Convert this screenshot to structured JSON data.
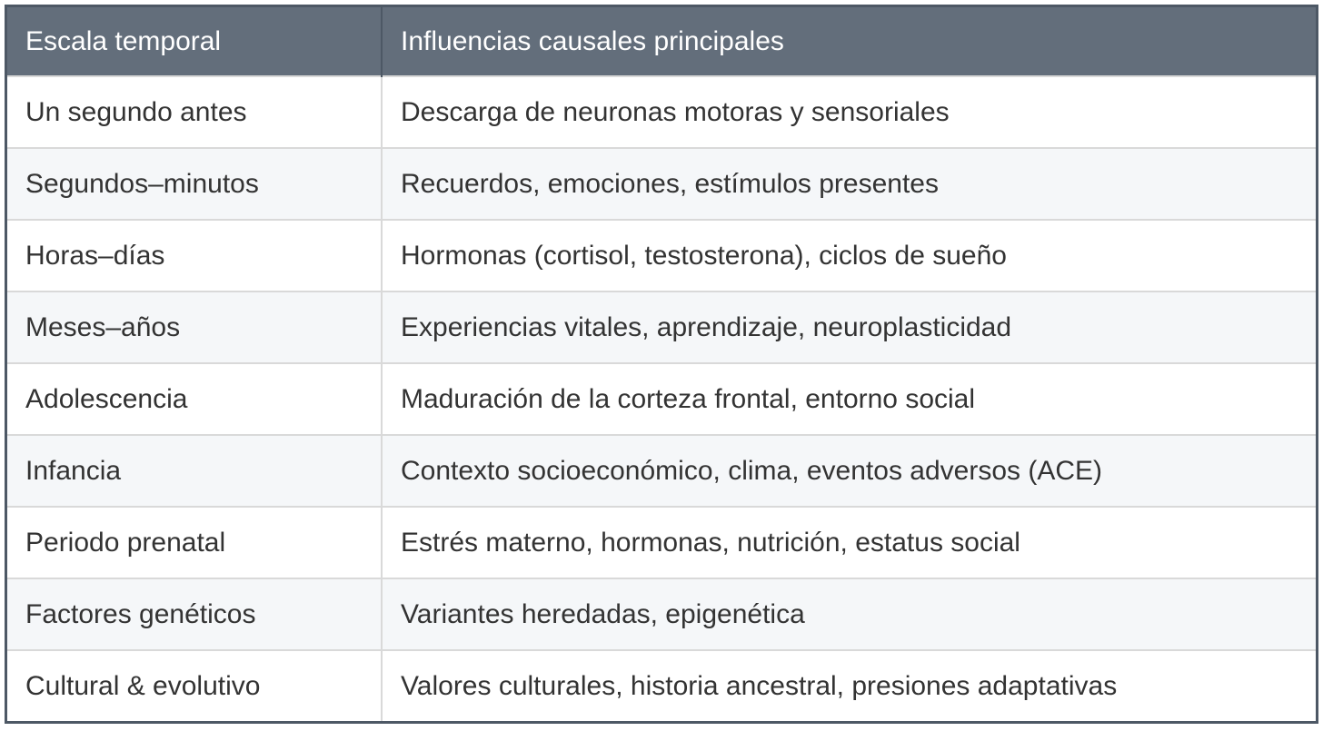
{
  "table": {
    "headers": [
      "Escala temporal",
      "Influencias causales principales"
    ],
    "rows": [
      [
        "Un segundo antes",
        "Descarga de neuronas motoras y sensoriales"
      ],
      [
        "Segundos–minutos",
        "Recuerdos, emociones, estímulos presentes"
      ],
      [
        "Horas–días",
        "Hormonas (cortisol, testosterona), ciclos de sueño"
      ],
      [
        "Meses–años",
        "Experiencias vitales, aprendizaje, neuroplasticidad"
      ],
      [
        "Adolescencia",
        "Maduración de la corteza frontal, entorno social"
      ],
      [
        "Infancia",
        "Contexto socioeconómico, clima, eventos adversos (ACE)"
      ],
      [
        "Periodo prenatal",
        "Estrés materno, hormonas, nutrición, estatus social"
      ],
      [
        "Factores genéticos",
        "Variantes heredadas, epigenética"
      ],
      [
        "Cultural & evolutivo",
        "Valores culturales, historia ancestral, presiones adaptativas"
      ]
    ]
  },
  "colors": {
    "header_bg": "#636e7b",
    "border": "#4d5865",
    "alt_row": "#f5f7f9"
  }
}
